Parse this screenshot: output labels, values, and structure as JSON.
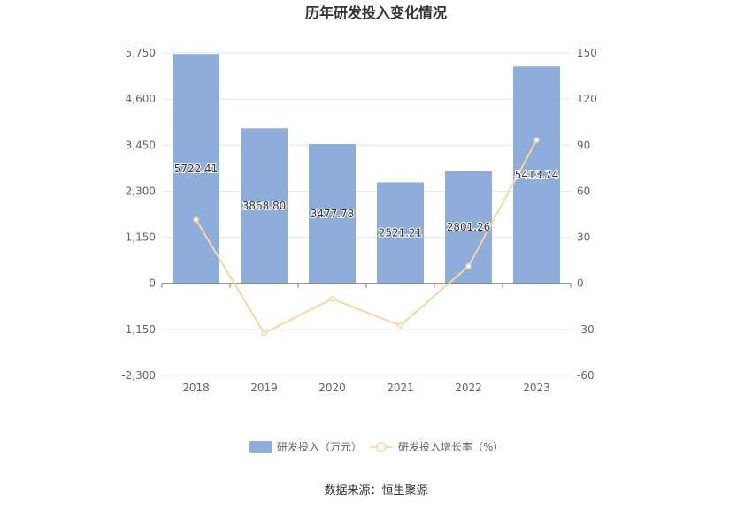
{
  "chart_data": {
    "type": "bar",
    "title": "历年研发投入变化情况",
    "categories": [
      "2018",
      "2019",
      "2020",
      "2021",
      "2022",
      "2023"
    ],
    "series": [
      {
        "name": "研发投入（万元）",
        "type": "bar",
        "axis": "left",
        "values": [
          5722.41,
          3868.8,
          3477.78,
          2521.21,
          2801.26,
          5413.74
        ],
        "labels": [
          "5722.41",
          "3868.80",
          "3477.78",
          "2521.21",
          "2801.26",
          "5413.74"
        ],
        "color": "#8eaddb"
      },
      {
        "name": "研发投入增长率（%）",
        "type": "line",
        "axis": "right",
        "values": [
          41.5,
          -32.4,
          -10.1,
          -27.5,
          11.1,
          93.3
        ],
        "color": "#f9d79b"
      }
    ],
    "y_left": {
      "ylim": [
        -2300,
        5750
      ],
      "ticks": [
        "5,750",
        "4,600",
        "3,450",
        "2,300",
        "1,150",
        "0",
        "-1,150",
        "-2,300"
      ]
    },
    "y_right": {
      "ylim": [
        -60,
        150
      ],
      "ticks": [
        "150",
        "120",
        "90",
        "60",
        "30",
        "0",
        "-30",
        "-60"
      ]
    },
    "grid": true,
    "legend": "bottom-center"
  },
  "source": "数据来源：恒生聚源"
}
